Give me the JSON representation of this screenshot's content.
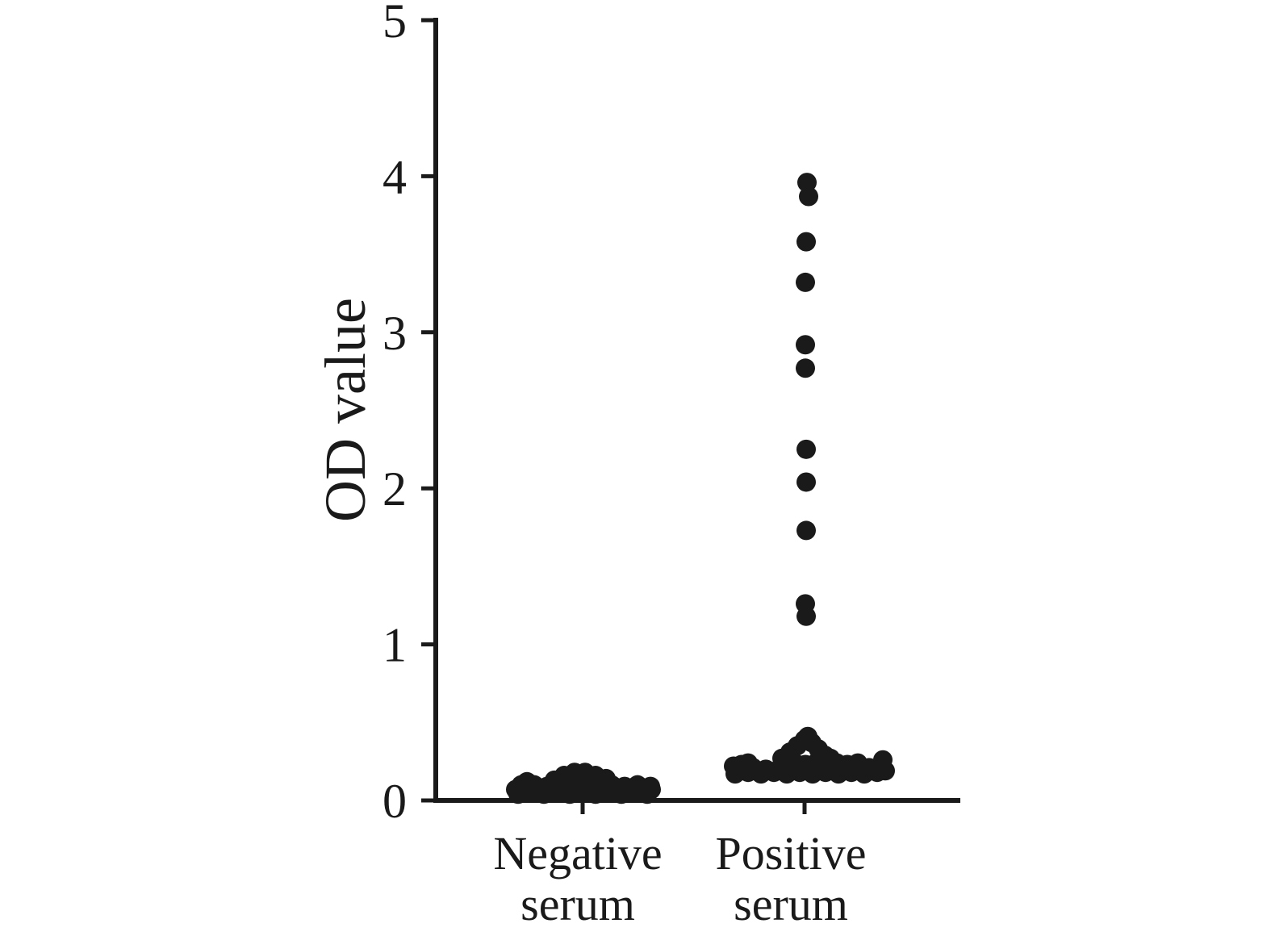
{
  "figure": {
    "background": "#ffffff",
    "ink_color": "#1a1a1a"
  },
  "chart_data": {
    "type": "scatter",
    "title": "",
    "xlabel": "",
    "ylabel": "OD value",
    "ylim": [
      0,
      5
    ],
    "yticks": [
      "0",
      "1",
      "2",
      "3",
      "4",
      "5"
    ],
    "grid": false,
    "legend": "none",
    "marker": {
      "shape": "circle",
      "color": "#1a1a1a",
      "radius_px": 12
    },
    "axes": {
      "color": "#1a1a1a"
    },
    "categories": [
      {
        "name": "Negative serum",
        "line1": "Negative",
        "line2": "serum"
      },
      {
        "name": "Positive serum",
        "line1": "Positive",
        "line2": "serum"
      }
    ],
    "series": [
      {
        "name": "Negative serum",
        "category_index": 0,
        "value_range_summary": "dense cluster ~0.03-0.21",
        "points": [
          [
            -80,
            0.04
          ],
          [
            -64,
            0.05
          ],
          [
            -48,
            0.04
          ],
          [
            -32,
            0.05
          ],
          [
            -16,
            0.04
          ],
          [
            0,
            0.05
          ],
          [
            16,
            0.04
          ],
          [
            32,
            0.05
          ],
          [
            48,
            0.04
          ],
          [
            64,
            0.05
          ],
          [
            80,
            0.04
          ],
          [
            -83,
            0.07
          ],
          [
            -69,
            0.08
          ],
          [
            -55,
            0.07
          ],
          [
            -41,
            0.08
          ],
          [
            -27,
            0.07
          ],
          [
            -13,
            0.08
          ],
          [
            1,
            0.07
          ],
          [
            15,
            0.08
          ],
          [
            29,
            0.07
          ],
          [
            43,
            0.08
          ],
          [
            57,
            0.07
          ],
          [
            71,
            0.08
          ],
          [
            85,
            0.07
          ],
          [
            -76,
            0.1
          ],
          [
            -60,
            0.1
          ],
          [
            -44,
            0.09
          ],
          [
            -28,
            0.1
          ],
          [
            -12,
            0.1
          ],
          [
            4,
            0.1
          ],
          [
            20,
            0.1
          ],
          [
            36,
            0.1
          ],
          [
            52,
            0.09
          ],
          [
            68,
            0.1
          ],
          [
            84,
            0.09
          ],
          [
            -69,
            0.12
          ],
          [
            -35,
            0.13
          ],
          [
            -23,
            0.16
          ],
          [
            -10,
            0.18
          ],
          [
            3,
            0.18
          ],
          [
            16,
            0.16
          ],
          [
            29,
            0.14
          ]
        ]
      },
      {
        "name": "Positive serum",
        "category_index": 1,
        "value_range_summary": "dense cluster ~0.17-0.42 plus high outliers",
        "points": [
          [
            -86,
            0.17
          ],
          [
            -70,
            0.18
          ],
          [
            -54,
            0.17
          ],
          [
            -38,
            0.18
          ],
          [
            -22,
            0.17
          ],
          [
            -6,
            0.18
          ],
          [
            10,
            0.17
          ],
          [
            26,
            0.18
          ],
          [
            42,
            0.17
          ],
          [
            58,
            0.18
          ],
          [
            74,
            0.17
          ],
          [
            90,
            0.18
          ],
          [
            100,
            0.19
          ],
          [
            -80,
            0.2
          ],
          [
            -64,
            0.21
          ],
          [
            -48,
            0.2
          ],
          [
            -32,
            0.2
          ],
          [
            -16,
            0.21
          ],
          [
            0,
            0.2
          ],
          [
            16,
            0.21
          ],
          [
            32,
            0.2
          ],
          [
            48,
            0.21
          ],
          [
            64,
            0.2
          ],
          [
            80,
            0.21
          ],
          [
            95,
            0.22
          ],
          [
            -88,
            0.22
          ],
          [
            -78,
            0.23
          ],
          [
            -70,
            0.24
          ],
          [
            -25,
            0.23
          ],
          [
            -12,
            0.24
          ],
          [
            1,
            0.23
          ],
          [
            14,
            0.24
          ],
          [
            27,
            0.23
          ],
          [
            40,
            0.24
          ],
          [
            53,
            0.23
          ],
          [
            66,
            0.24
          ],
          [
            97,
            0.26
          ],
          [
            -28,
            0.27
          ],
          [
            -18,
            0.31
          ],
          [
            -9,
            0.35
          ],
          [
            0,
            0.39
          ],
          [
            4,
            0.41
          ],
          [
            9,
            0.37
          ],
          [
            17,
            0.33
          ],
          [
            25,
            0.29
          ],
          [
            32,
            0.27
          ],
          [
            3,
            3.96
          ],
          [
            5,
            3.87
          ],
          [
            2,
            3.58
          ],
          [
            1,
            3.32
          ],
          [
            1,
            2.92
          ],
          [
            1,
            2.77
          ],
          [
            2,
            2.25
          ],
          [
            2,
            2.04
          ],
          [
            2,
            1.73
          ],
          [
            1,
            1.26
          ],
          [
            2,
            1.18
          ]
        ],
        "outlier_values": [
          1.18,
          1.26,
          1.73,
          2.04,
          2.25,
          2.77,
          2.92,
          3.32,
          3.58,
          3.87,
          3.96
        ]
      }
    ]
  }
}
